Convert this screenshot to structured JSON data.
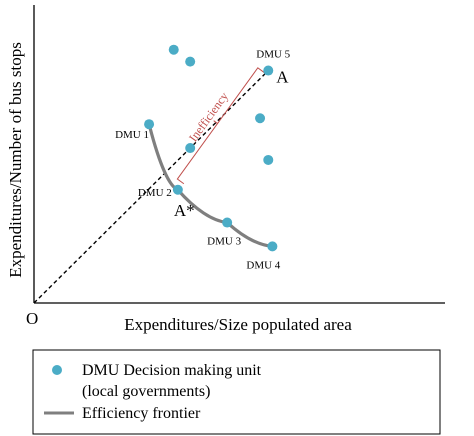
{
  "chart_data": {
    "type": "scatter",
    "xlabel": "Expenditures/Size populated area",
    "ylabel": "Expenditures/Number of bus stops",
    "origin_label": "O",
    "xlim": [
      0,
      100
    ],
    "ylim": [
      0,
      100
    ],
    "axes_unlabeled_ticks": true,
    "points": [
      {
        "label": "DMU 1",
        "x": 28,
        "y": 60
      },
      {
        "label": "DMU 2",
        "x": 35,
        "y": 38
      },
      {
        "label": "DMU 3",
        "x": 47,
        "y": 27
      },
      {
        "label": "DMU 4",
        "x": 58,
        "y": 19
      },
      {
        "label": "DMU 5",
        "x": 57,
        "y": 78
      },
      {
        "label": "",
        "x": 34,
        "y": 85
      },
      {
        "label": "",
        "x": 38,
        "y": 81
      },
      {
        "label": "",
        "x": 38,
        "y": 52
      },
      {
        "label": "",
        "x": 55,
        "y": 62
      },
      {
        "label": "",
        "x": 57,
        "y": 48
      }
    ],
    "frontier_order": [
      "DMU 1",
      "DMU 2",
      "DMU 3",
      "DMU 4"
    ],
    "ray": {
      "from": "O",
      "to": "DMU 5"
    },
    "projection_labels": {
      "A": "A",
      "A_star": "A*"
    },
    "inefficiency_label": "Inefficiency",
    "colors": {
      "point": "#4bacc6",
      "frontier": "#7f7f7f",
      "inefficiency": "#c0504d",
      "axis": "#000000"
    },
    "legend": {
      "placement": "bottom",
      "items": [
        {
          "marker": "circle",
          "text": "DMU Decision making unit"
        },
        {
          "marker": "none",
          "text": "(local governments)"
        },
        {
          "marker": "line",
          "text": "Efficiency frontier"
        }
      ]
    }
  }
}
